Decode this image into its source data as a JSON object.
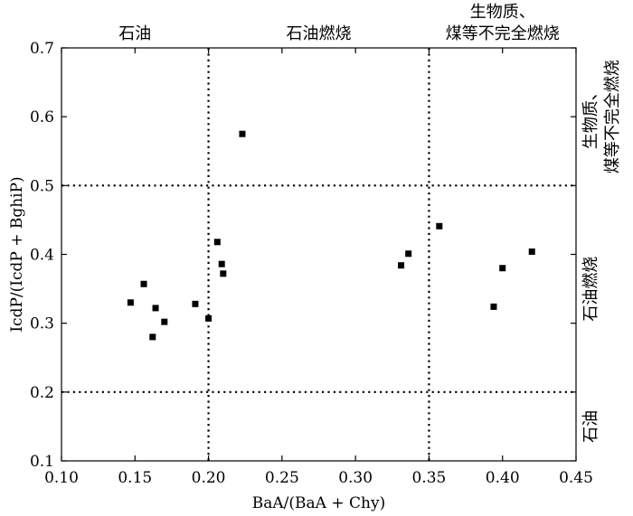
{
  "chart_data": {
    "type": "scatter",
    "title": "",
    "xlabel": "BaA/(BaA + Chy)",
    "ylabel": "IcdP/(IcdP + BghiP)",
    "xlim": [
      0.1,
      0.45
    ],
    "ylim": [
      0.1,
      0.7
    ],
    "xticks": [
      0.1,
      0.15,
      0.2,
      0.25,
      0.3,
      0.35,
      0.4,
      0.45
    ],
    "xtick_labels": [
      "0.10",
      "0.15",
      "0.20",
      "0.25",
      "0.30",
      "0.35",
      "0.40",
      "0.45"
    ],
    "yticks": [
      0.1,
      0.2,
      0.3,
      0.4,
      0.5,
      0.6,
      0.7
    ],
    "ytick_labels": [
      "0.1",
      "0.2",
      "0.3",
      "0.4",
      "0.5",
      "0.6",
      "0.7"
    ],
    "grid": false,
    "legend": "none",
    "marker_color": "#000000",
    "reference_lines": {
      "vertical": [
        0.2,
        0.35
      ],
      "horizontal": [
        0.2,
        0.5
      ]
    },
    "top_region_labels": [
      {
        "text": "石油",
        "x_from": 0.1,
        "x_to": 0.2
      },
      {
        "text": "石油燃烧",
        "x_from": 0.2,
        "x_to": 0.35
      },
      {
        "lines": [
          "生物质、",
          "煤等不完全燃烧"
        ],
        "x_from": 0.35,
        "x_to": 0.45
      }
    ],
    "right_region_labels": [
      {
        "lines": [
          "生物质、",
          "煤等不完全燃烧"
        ],
        "y_from": 0.5,
        "y_to": 0.7
      },
      {
        "text": "石油燃烧",
        "y_from": 0.2,
        "y_to": 0.5
      },
      {
        "text": "石油",
        "y_from": 0.1,
        "y_to": 0.2
      }
    ],
    "points": [
      {
        "x": 0.147,
        "y": 0.33
      },
      {
        "x": 0.156,
        "y": 0.357
      },
      {
        "x": 0.162,
        "y": 0.28
      },
      {
        "x": 0.164,
        "y": 0.322
      },
      {
        "x": 0.17,
        "y": 0.302
      },
      {
        "x": 0.191,
        "y": 0.328
      },
      {
        "x": 0.2,
        "y": 0.307
      },
      {
        "x": 0.206,
        "y": 0.418
      },
      {
        "x": 0.209,
        "y": 0.386
      },
      {
        "x": 0.21,
        "y": 0.372
      },
      {
        "x": 0.223,
        "y": 0.575
      },
      {
        "x": 0.331,
        "y": 0.384
      },
      {
        "x": 0.336,
        "y": 0.401
      },
      {
        "x": 0.357,
        "y": 0.441
      },
      {
        "x": 0.394,
        "y": 0.324
      },
      {
        "x": 0.4,
        "y": 0.38
      },
      {
        "x": 0.42,
        "y": 0.404
      }
    ]
  }
}
